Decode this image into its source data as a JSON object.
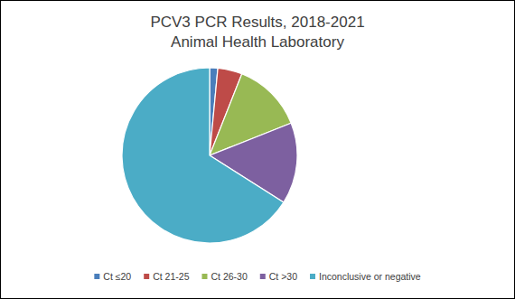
{
  "chart_data": {
    "type": "pie",
    "title": "PCV3 PCR Results, 2018-2021",
    "subtitle": "Animal Health Laboratory",
    "categories": [
      "Ct ≤20",
      "Ct 21-25",
      "Ct 26-30",
      "Ct >30",
      "Inconclusive or negative"
    ],
    "values": [
      1.5,
      4.5,
      13,
      15,
      66
    ],
    "colors": [
      "#4a7ebb",
      "#be4b48",
      "#98b954",
      "#7d60a0",
      "#4bacc6"
    ],
    "legend": "bottom",
    "data_labels": false
  }
}
